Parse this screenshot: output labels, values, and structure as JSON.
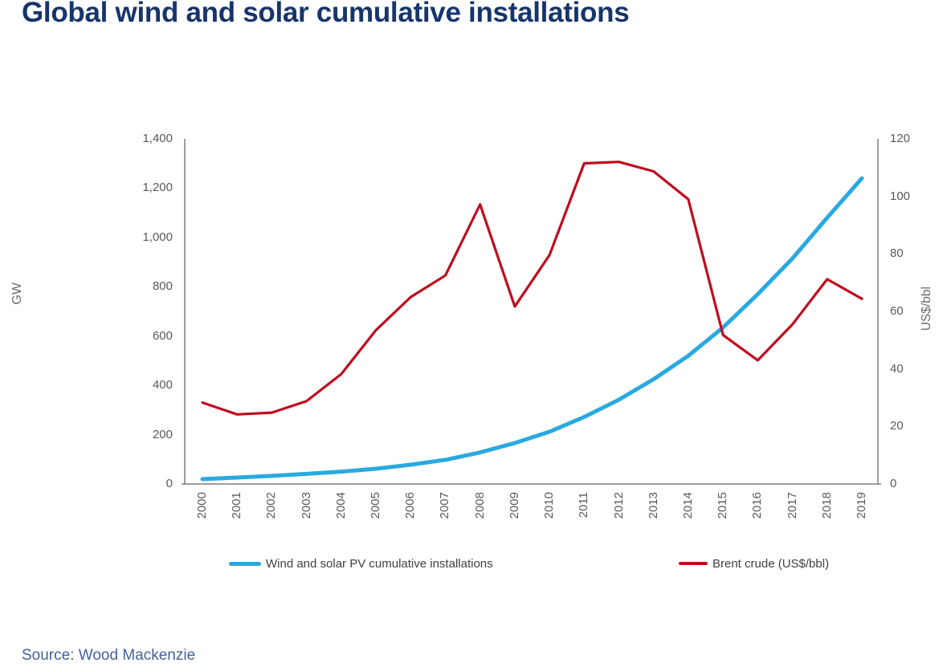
{
  "page": {
    "title": "Global wind and solar cumulative installations",
    "source": "Source: Wood Mackenzie"
  },
  "colors": {
    "title": "#17356B",
    "source_text": "#44619D",
    "axis_line": "#7F7F7F",
    "tick_text": "#595959",
    "legend_text": "#404040",
    "wind_solar_line": "#29A9E0",
    "brent_line": "#BF0D1E"
  },
  "chart_data": {
    "type": "line",
    "title": "Global wind and solar cumulative installations",
    "x": [
      2000,
      2001,
      2002,
      2003,
      2004,
      2005,
      2006,
      2007,
      2008,
      2009,
      2010,
      2011,
      2012,
      2013,
      2014,
      2015,
      2016,
      2017,
      2018,
      2019
    ],
    "series": [
      {
        "name": "Wind and solar PV cumulative installations",
        "axis": "left",
        "unit": "GW",
        "color": "#29A9E0",
        "stroke_width": 5,
        "values": [
          20,
          26,
          33,
          41,
          50,
          62,
          78,
          98,
          128,
          166,
          212,
          272,
          342,
          425,
          520,
          635,
          770,
          915,
          1080,
          1240
        ]
      },
      {
        "name": "Brent crude (US$/bbl)",
        "axis": "right",
        "unit": "US$/bbl",
        "color": "#BF0D1E",
        "stroke_width": 3.2,
        "values": [
          28.3,
          24.2,
          24.8,
          28.8,
          38.2,
          53.5,
          65.0,
          72.5,
          97.2,
          61.7,
          79.6,
          111.5,
          112.0,
          108.7,
          99.0,
          51.8,
          43.0,
          55.5,
          71.2,
          64.4
        ]
      }
    ],
    "axes": {
      "left": {
        "label": "GW",
        "min": 0,
        "max": 1400,
        "ticks": [
          {
            "v": 1400,
            "label": "1,400"
          },
          {
            "v": 1200,
            "label": "1,200"
          },
          {
            "v": 1000,
            "label": "1,000"
          },
          {
            "v": 800,
            "label": "800"
          },
          {
            "v": 600,
            "label": "600"
          },
          {
            "v": 400,
            "label": "400"
          },
          {
            "v": 200,
            "label": "200"
          },
          {
            "v": 0,
            "label": "0"
          }
        ]
      },
      "right": {
        "label": "US$/bbl",
        "min": 0,
        "max": 120,
        "ticks": [
          {
            "v": 120,
            "label": "120"
          },
          {
            "v": 100,
            "label": "100"
          },
          {
            "v": 80,
            "label": "80"
          },
          {
            "v": 60,
            "label": "60"
          },
          {
            "v": 40,
            "label": "40"
          },
          {
            "v": 20,
            "label": "20"
          },
          {
            "v": 0,
            "label": "0"
          }
        ]
      },
      "x": {
        "labels": [
          "2000",
          "2001",
          "2002",
          "2003",
          "2004",
          "2005",
          "2006",
          "2007",
          "2008",
          "2009",
          "2010",
          "2011",
          "2012",
          "2013",
          "2014",
          "2015",
          "2016",
          "2017",
          "2018",
          "2019"
        ]
      }
    },
    "legend": {
      "position": "bottom",
      "items": [
        "Wind and solar PV cumulative installations",
        "Brent crude (US$/bbl)"
      ]
    },
    "grid": false
  }
}
